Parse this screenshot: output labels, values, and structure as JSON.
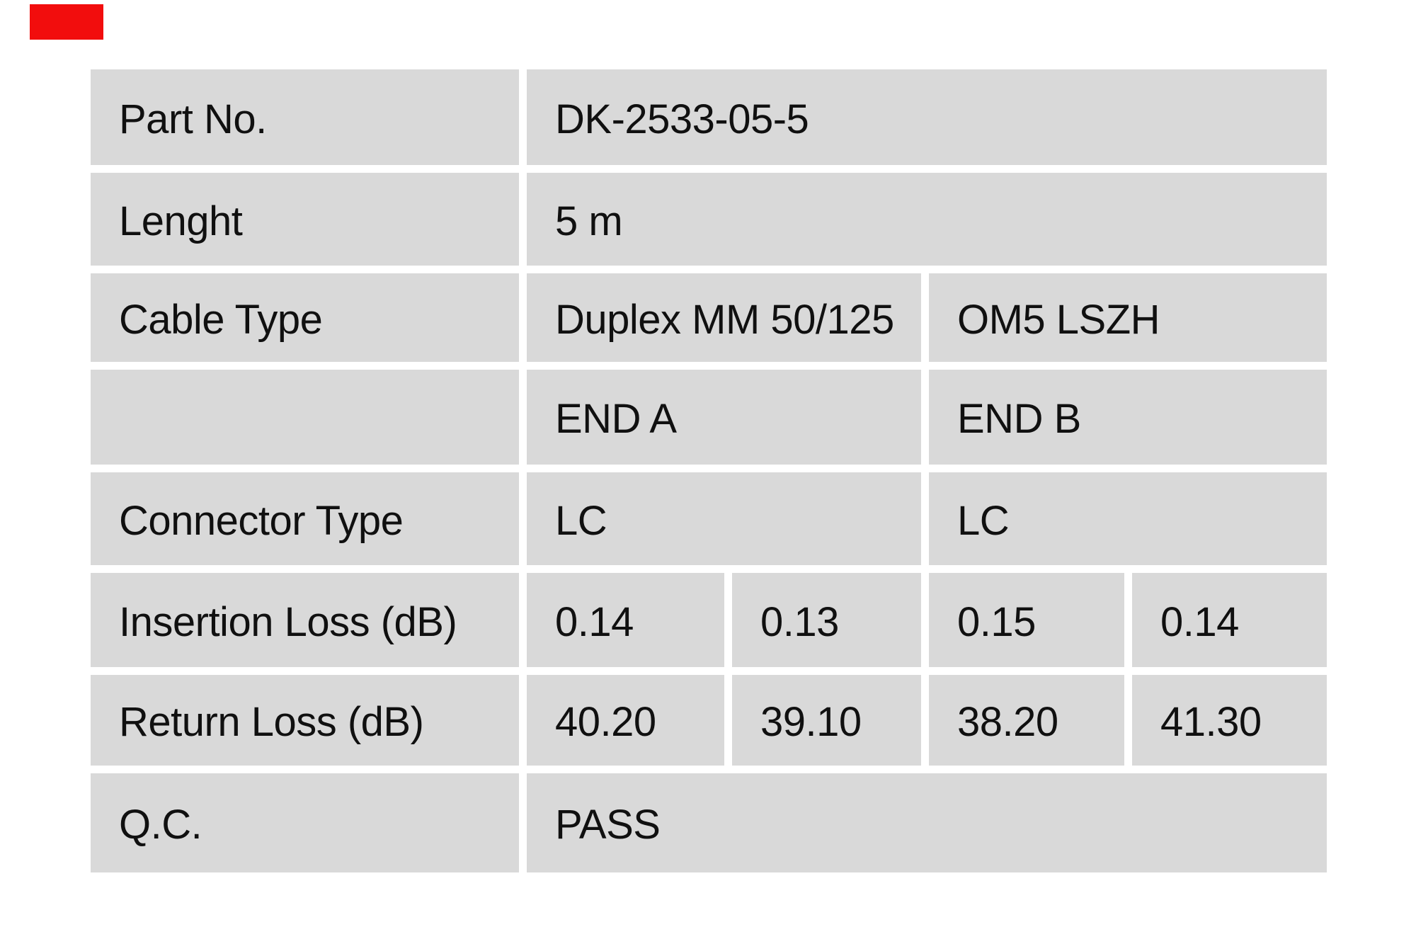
{
  "page": {
    "background_color": "#ffffff",
    "badge_color": "#f20d0d"
  },
  "table": {
    "cell_background_color": "#d9d9d9",
    "text_color": "#101010",
    "columns": [
      "label",
      "end-a-1",
      "end-a-2",
      "end-b-1",
      "end-b-2"
    ],
    "rows": [
      {
        "label": "Part No.",
        "cells": [
          {
            "text": "DK-2533-05-5",
            "span": 4
          }
        ]
      },
      {
        "label": "Lenght",
        "cells": [
          {
            "text": "5 m",
            "span": 4
          }
        ]
      },
      {
        "label": "Cable Type",
        "cells": [
          {
            "text": "Duplex MM 50/125",
            "span": 2
          },
          {
            "text": "OM5 LSZH",
            "span": 2
          }
        ]
      },
      {
        "label": "",
        "cells": [
          {
            "text": "END A",
            "span": 2
          },
          {
            "text": "END B",
            "span": 2
          }
        ]
      },
      {
        "label": "Connector Type",
        "cells": [
          {
            "text": "LC",
            "span": 2
          },
          {
            "text": "LC",
            "span": 2
          }
        ]
      },
      {
        "label": "Insertion Loss (dB)",
        "cells": [
          {
            "text": "0.14",
            "span": 1
          },
          {
            "text": "0.13",
            "span": 1
          },
          {
            "text": "0.15",
            "span": 1
          },
          {
            "text": "0.14",
            "span": 1
          }
        ]
      },
      {
        "label": "Return Loss (dB)",
        "cells": [
          {
            "text": "40.20",
            "span": 1
          },
          {
            "text": "39.10",
            "span": 1
          },
          {
            "text": "38.20",
            "span": 1
          },
          {
            "text": "41.30",
            "span": 1
          }
        ]
      },
      {
        "label": "Q.C.",
        "cells": [
          {
            "text": "PASS",
            "span": 4
          }
        ]
      }
    ]
  }
}
